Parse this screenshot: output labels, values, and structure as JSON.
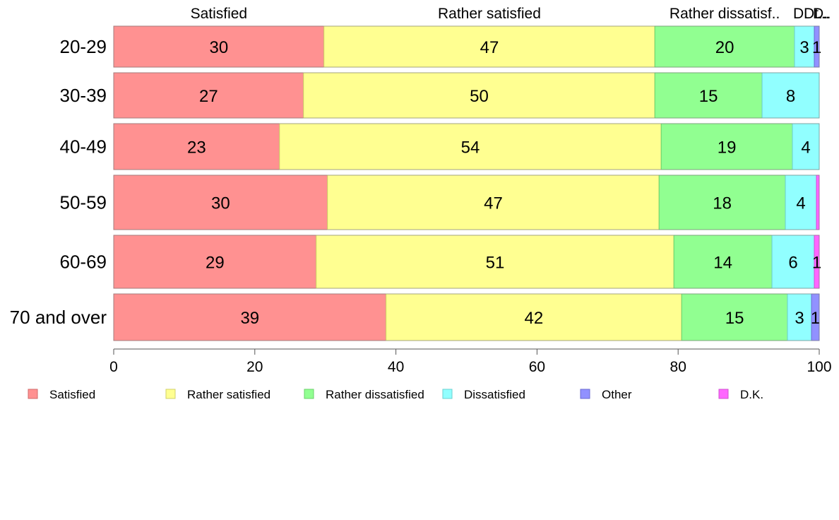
{
  "chart_data": {
    "type": "bar",
    "orientation": "horizontal",
    "stacked": true,
    "categories": [
      "20-29",
      "30-39",
      "40-49",
      "50-59",
      "60-69",
      "70 and over"
    ],
    "series": [
      {
        "name": "Satisfied",
        "color": "#ff9191",
        "stroke": "#d06a6a",
        "values": [
          29.8,
          26.9,
          23.5,
          30.3,
          28.7,
          38.6
        ],
        "labels": [
          "30",
          "27",
          "23",
          "30",
          "29",
          "39"
        ]
      },
      {
        "name": "Rather satisfied",
        "color": "#ffff91",
        "stroke": "#d0d06a",
        "values": [
          46.9,
          49.8,
          54.1,
          47.0,
          50.7,
          41.9
        ],
        "labels": [
          "47",
          "50",
          "54",
          "47",
          "51",
          "42"
        ]
      },
      {
        "name": "Rather dissatisfied",
        "color": "#91ff91",
        "stroke": "#6ad06a",
        "values": [
          19.8,
          15.2,
          18.6,
          17.9,
          13.9,
          15.0
        ],
        "labels": [
          "20",
          "15",
          "19",
          "18",
          "14",
          "15"
        ]
      },
      {
        "name": "Dissatisfied",
        "color": "#91ffff",
        "stroke": "#6ad0d0",
        "values": [
          2.8,
          8.1,
          3.8,
          4.4,
          6.0,
          3.4
        ],
        "labels": [
          "3",
          "8",
          "4",
          "4",
          "6",
          "3"
        ]
      },
      {
        "name": "Other",
        "color": "#9191ff",
        "stroke": "#6a6ad0",
        "values": [
          0.7,
          0.0,
          0.0,
          0.0,
          0.0,
          1.1
        ],
        "labels": [
          "1",
          "",
          "",
          "",
          "",
          "1"
        ]
      },
      {
        "name": "D.K.",
        "color": "#ff66ff",
        "stroke": "#d050d0",
        "values": [
          0.0,
          0.0,
          0.0,
          0.4,
          0.7,
          0.0
        ],
        "labels": [
          "",
          "",
          "",
          "",
          "1",
          ""
        ]
      }
    ],
    "top_labels": [
      "Satisfied",
      "Rather satisfied",
      "Rather dissatisf..",
      "D.",
      "Dt...",
      "D.",
      "..."
    ],
    "xlim": [
      0,
      100
    ],
    "xticks": [
      "0",
      "20",
      "40",
      "60",
      "80",
      "100"
    ],
    "legend_position": "bottom",
    "grid": false
  }
}
